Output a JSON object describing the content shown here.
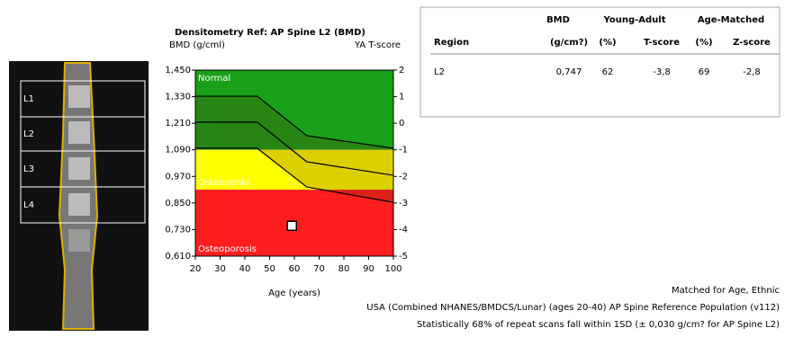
{
  "chart_data": {
    "type": "scatter",
    "title": "Densitometry Ref: AP Spine L2 (BMD)",
    "ylabel": "BMD (g/cml)",
    "y2label": "YA T-score",
    "xlabel": "Age (years)",
    "xlim": [
      20,
      100
    ],
    "xticks": [
      20,
      30,
      40,
      50,
      60,
      70,
      80,
      90,
      100
    ],
    "ylim": [
      0.61,
      1.45
    ],
    "yticks": [
      {
        "value": 0.61,
        "label": "0,610"
      },
      {
        "value": 0.73,
        "label": "0,730"
      },
      {
        "value": 0.85,
        "label": "0,850"
      },
      {
        "value": 0.97,
        "label": "0,970"
      },
      {
        "value": 1.09,
        "label": "1,090"
      },
      {
        "value": 1.21,
        "label": "1,210"
      },
      {
        "value": 1.33,
        "label": "1,330"
      },
      {
        "value": 1.45,
        "label": "1,450"
      }
    ],
    "y2lim": [
      -5,
      2
    ],
    "y2ticks": [
      -5,
      -4,
      -3,
      -2,
      -1,
      0,
      1,
      2
    ],
    "zones": [
      {
        "name": "Normal",
        "from": 1.09,
        "to": 1.45,
        "color": "#19a019"
      },
      {
        "name": "Osteopenia",
        "from": 0.91,
        "to": 1.09,
        "color": "#ffff00"
      },
      {
        "name": "Osteoporosis",
        "from": 0.61,
        "to": 0.91,
        "color": "#ff1e1e"
      }
    ],
    "reference": {
      "x": [
        20,
        45,
        65,
        100
      ],
      "upper": [
        1.332,
        1.332,
        1.154,
        1.097
      ],
      "mean": [
        1.215,
        1.215,
        1.036,
        0.975
      ],
      "lower": [
        1.097,
        1.097,
        0.922,
        0.853
      ]
    },
    "point": {
      "x": 59,
      "y": 0.747
    }
  },
  "table": {
    "header_top": [
      "BMD",
      "Young-Adult",
      "Age-Matched"
    ],
    "header": [
      "Region",
      "(g/cm?)",
      "(%)",
      "T-score",
      "(%)",
      "Z-score"
    ],
    "rows": [
      [
        "L2",
        "0,747",
        "62",
        "-3,8",
        "69",
        "-2,8"
      ]
    ]
  },
  "image": {
    "labels": [
      "L1",
      "L2",
      "L3",
      "L4"
    ]
  },
  "notes": [
    "Matched for Age, Ethnic",
    "USA (Combined NHANES/BMDCS/Lunar) (ages 20-40) AP Spine Reference Population (v112)",
    "Statistically 68% of repeat scans fall within 1SD (± 0,030 g/cm? for AP Spine L2)"
  ]
}
